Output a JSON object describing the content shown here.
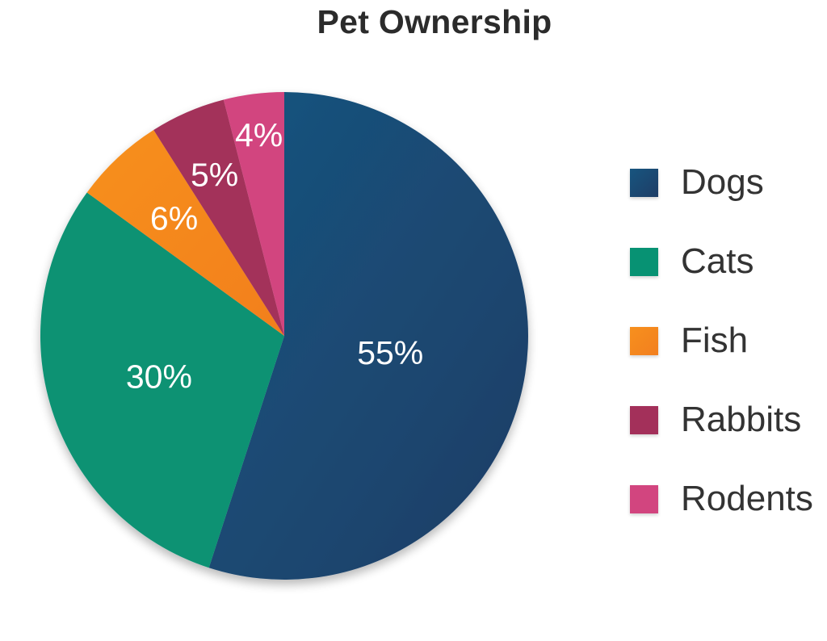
{
  "chart_data": {
    "type": "pie",
    "title": "Pet Ownership",
    "categories": [
      "Dogs",
      "Cats",
      "Fish",
      "Rabbits",
      "Rodents"
    ],
    "values": [
      55,
      30,
      6,
      5,
      4
    ],
    "labels": [
      "55%",
      "30%",
      "6%",
      "5%",
      "4%"
    ],
    "colors": [
      "#1e3d66",
      "#079273",
      "#f27f1f",
      "#a3305a",
      "#d2457f"
    ],
    "gradient_tops": [
      "#17557f",
      "#079273",
      "#f7901e",
      "#a3305a",
      "#d2457f"
    ],
    "legend_position": "right"
  }
}
